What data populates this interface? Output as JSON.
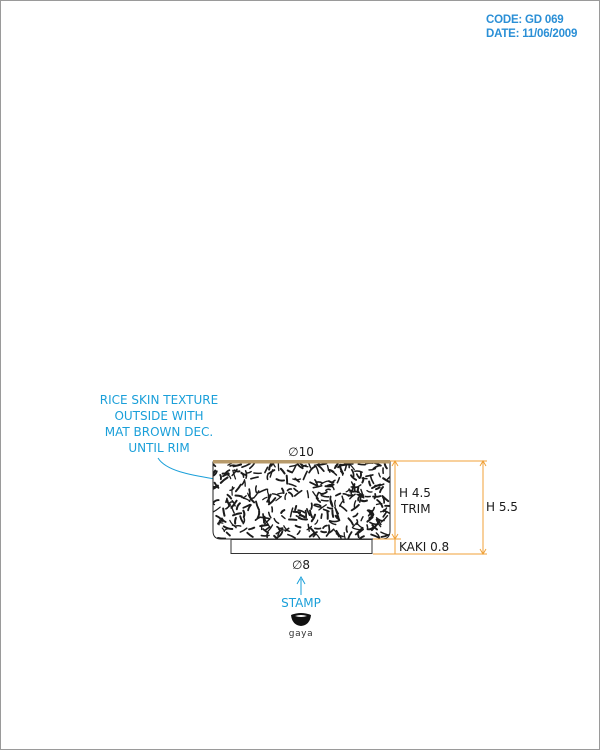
{
  "header": {
    "code": "CODE: GD 069",
    "date": "DATE: 11/06/2009"
  },
  "annotation": {
    "lines": [
      "RICE SKIN TEXTURE",
      "OUTSIDE WITH",
      "MAT BROWN DEC.",
      "UNTIL RIM"
    ]
  },
  "dimensions": {
    "top_diameter": "∅10",
    "bottom_diameter": "∅8",
    "inner_height": "H 4.5",
    "trim": "TRIM",
    "total_height": "H 5.5",
    "foot": "KAKI 0.8"
  },
  "stamp": {
    "label": "STAMP",
    "logo_text": "gaya"
  },
  "colors": {
    "annotation_blue": "#1a9fd9",
    "dimension_orange": "#f0a23a",
    "rim_brown": "#b79a6a",
    "header_blue": "#2a8fd6"
  }
}
